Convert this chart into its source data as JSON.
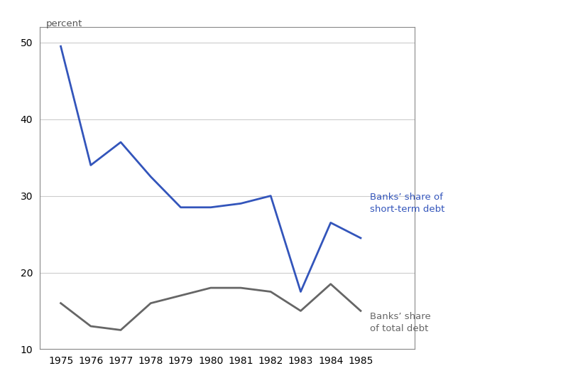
{
  "years": [
    1975,
    1976,
    1977,
    1978,
    1979,
    1980,
    1981,
    1982,
    1983,
    1984,
    1985
  ],
  "short_term_debt": [
    49.5,
    34.0,
    37.0,
    32.5,
    28.5,
    28.5,
    29.0,
    30.0,
    17.5,
    26.5,
    24.5
  ],
  "total_debt": [
    16.0,
    13.0,
    12.5,
    16.0,
    17.0,
    18.0,
    18.0,
    17.5,
    15.0,
    18.5,
    15.0
  ],
  "short_term_color": "#3355BB",
  "total_debt_color": "#666666",
  "background_color": "#ffffff",
  "outer_box_color": "#aaaaaa",
  "ylim": [
    10,
    52
  ],
  "yticks": [
    10,
    20,
    30,
    40,
    50
  ],
  "xlim_left": 1974.3,
  "xlim_right": 1986.8,
  "ylabel_text": "percent",
  "short_term_label": "Banks’ share of\nshort-term debt",
  "total_debt_label": "Banks’ share\nof total debt",
  "linewidth": 2.0,
  "grid_color": "#cccccc",
  "font_size": 10,
  "label_font_size": 9.5
}
